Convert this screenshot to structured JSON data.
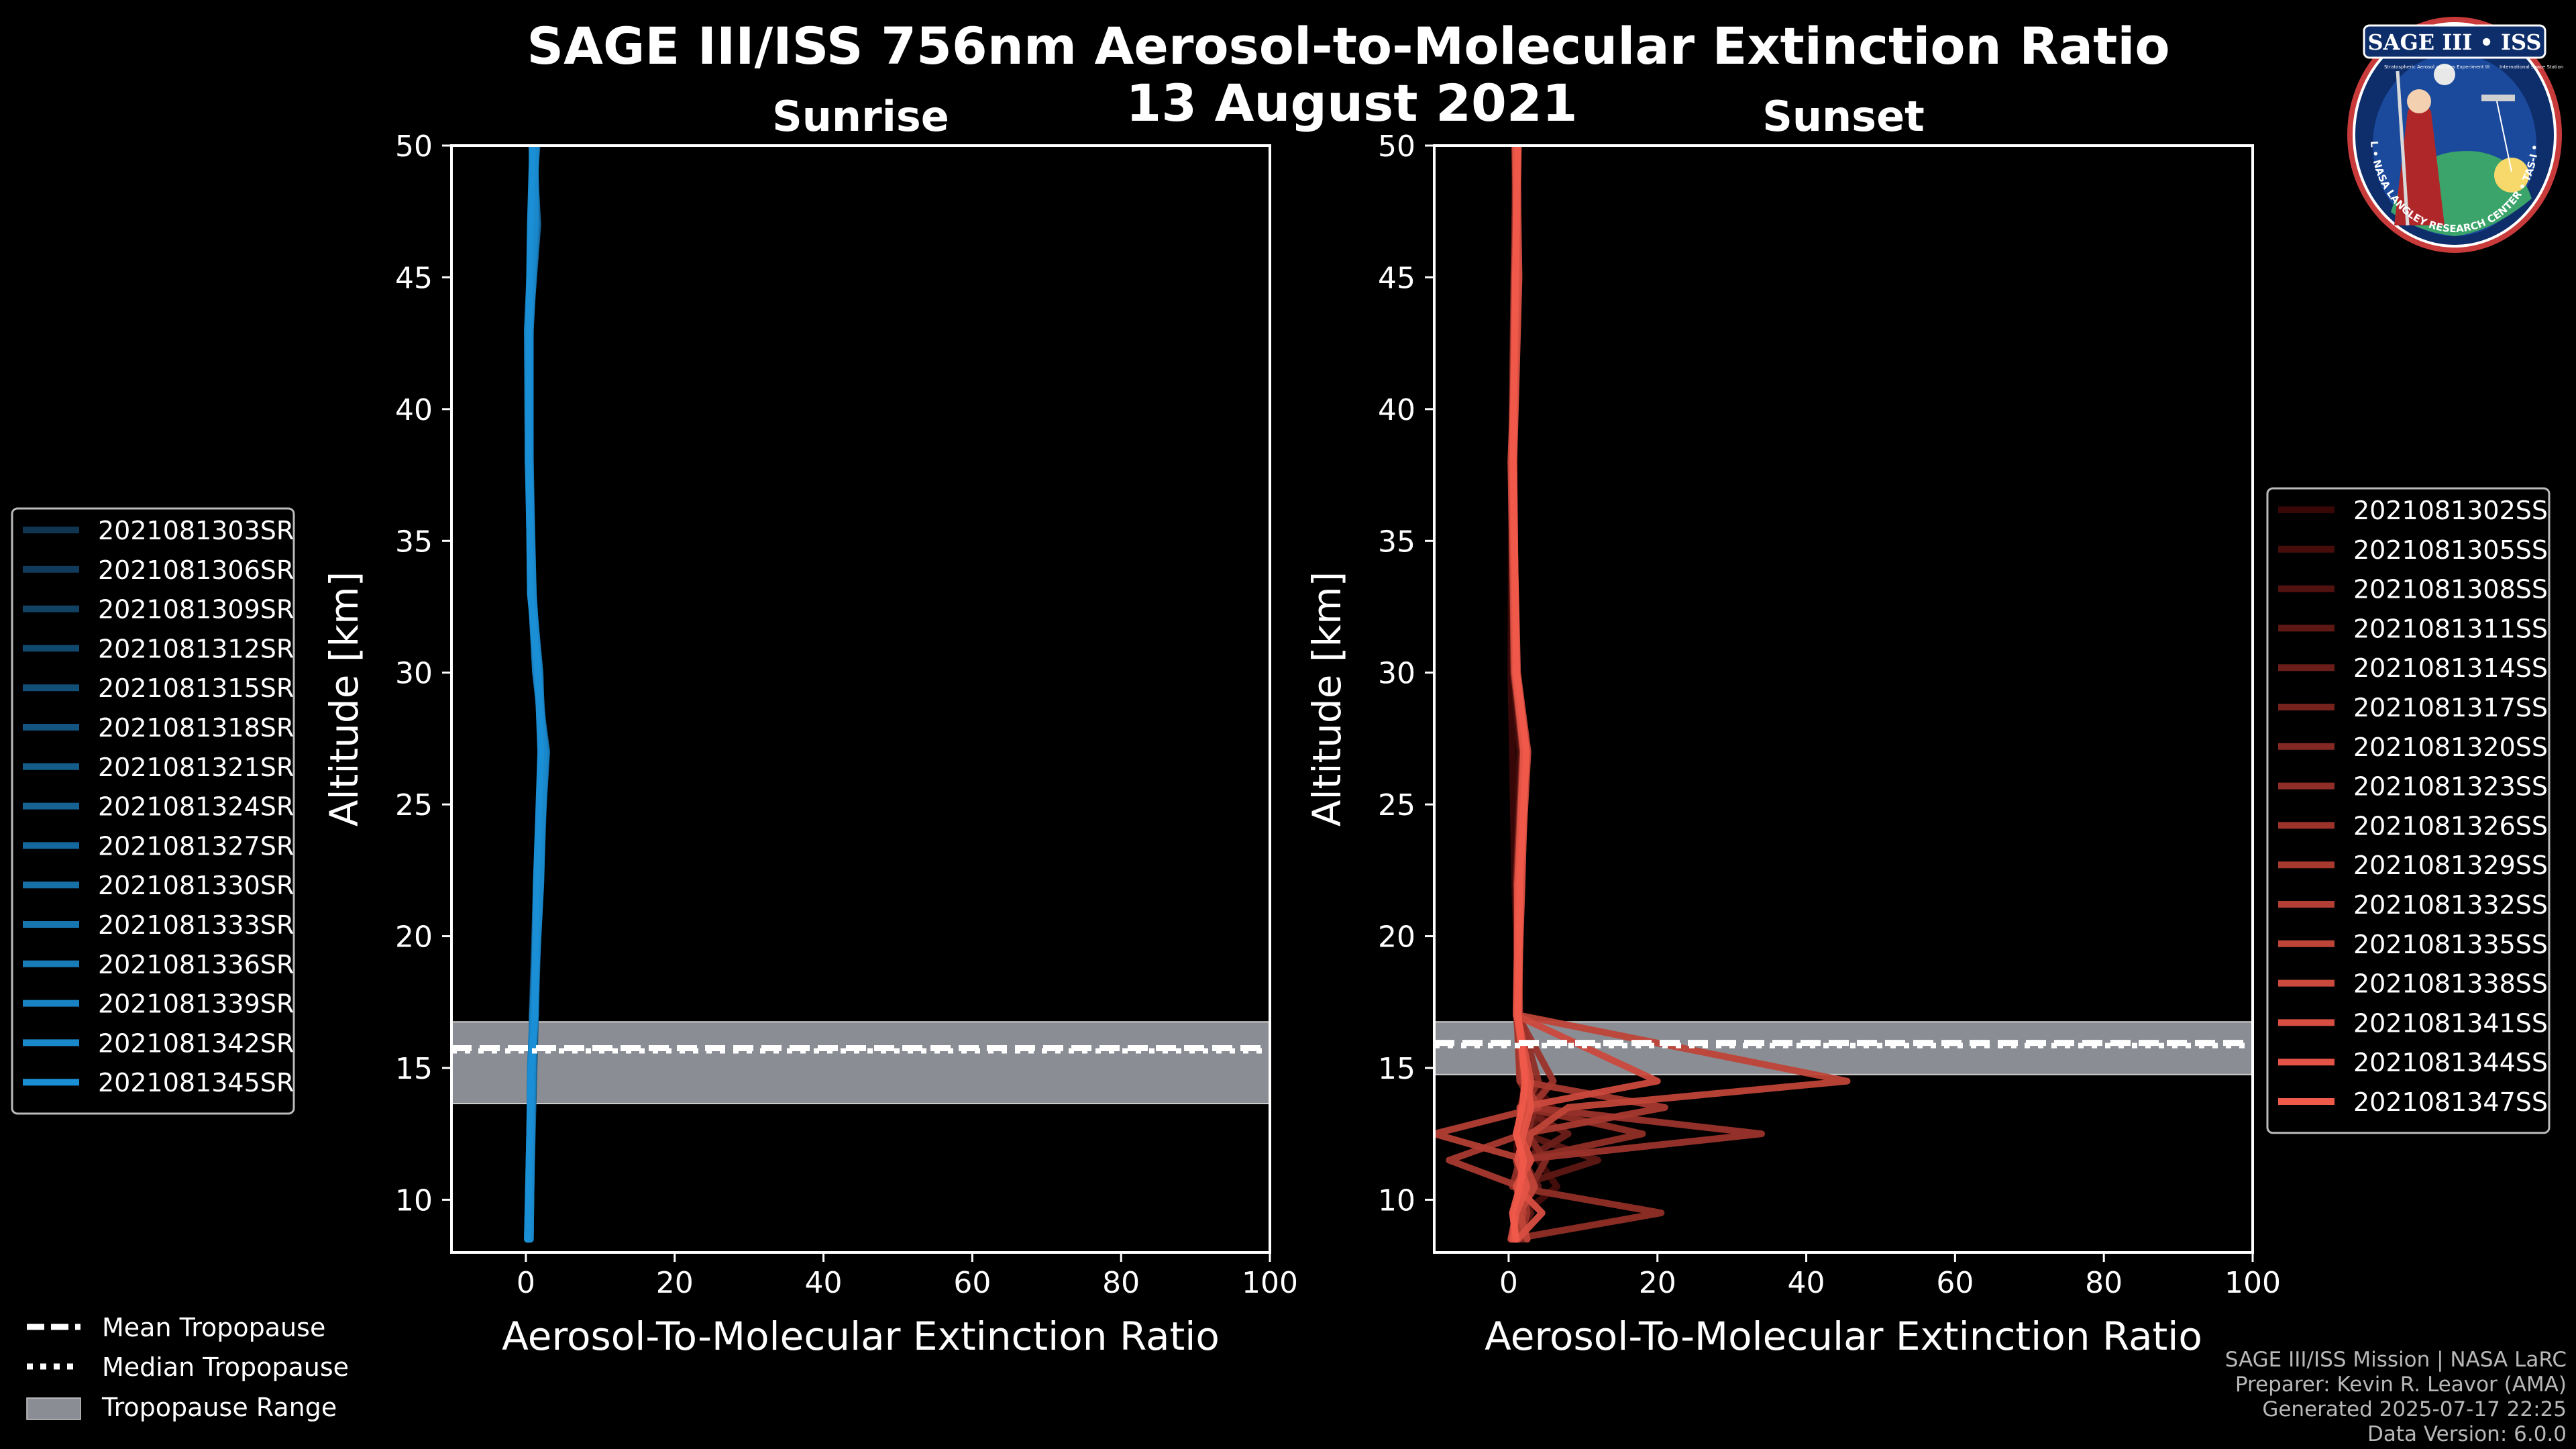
{
  "header": {
    "title": "SAGE III/ISS 756nm Aerosol-to-Molecular Extinction Ratio",
    "date": "13 August 2021"
  },
  "badge": {
    "name": "SAGE III • ISS",
    "ring_text": "BALL • NASA LANGLEY RESEARCH CENTER • TAS-I • ESA",
    "sub_left": "Stratospheric Aerosol and Gas Experiment III",
    "sub_right": "International Space Station"
  },
  "tropopause_legend": [
    {
      "label": "Mean Tropopause",
      "style": "dashed"
    },
    {
      "label": "Median Tropopause",
      "style": "dotted"
    },
    {
      "label": "Tropopause Range",
      "style": "patch"
    }
  ],
  "footer": [
    "SAGE III/ISS Mission | NASA LaRC",
    "Preparer: Kevin R. Leavor (AMA)",
    "Generated 2025-07-17 22:25",
    "Data Version: 6.0.0"
  ],
  "colors": {
    "background": "#000000",
    "sunrise_dark": "#0f3550",
    "sunrise": "#1a8fd6",
    "sunset_dark": "#3a0707",
    "sunset": "#f05a4a",
    "tropo_band": "#8a8d93"
  },
  "chart_data": [
    {
      "type": "line",
      "title": "Sunrise",
      "xlabel": "Aerosol-To-Molecular Extinction Ratio",
      "ylabel": "Altitude [km]",
      "xlim": [
        -10,
        100
      ],
      "ylim": [
        8,
        50
      ],
      "xticks": [
        0,
        20,
        40,
        60,
        80,
        100
      ],
      "yticks": [
        10,
        15,
        20,
        25,
        30,
        35,
        40,
        45,
        50
      ],
      "tropopause": {
        "mean": 15.75,
        "median": 15.65,
        "range": [
          13.65,
          16.75
        ]
      },
      "legend_location": "left",
      "series": [
        {
          "name": "2021081303SR",
          "x": [
            0.5,
            1.0,
            0.8,
            1.5,
            2.0,
            1.6,
            0.9,
            0.4,
            0.3,
            0.7,
            0.9
          ],
          "y": [
            8.5,
            15,
            17,
            22,
            27,
            30,
            33,
            38,
            43,
            47,
            50
          ]
        },
        {
          "name": "2021081306SR",
          "x": [
            0.3,
            0.8,
            1.0,
            1.7,
            2.3,
            1.4,
            0.7,
            0.5,
            0.6,
            1.2,
            1.0
          ],
          "y": [
            8.5,
            15,
            17,
            22,
            27,
            30,
            33,
            38,
            43,
            47,
            50
          ]
        },
        {
          "name": "2021081309SR",
          "x": [
            0.4,
            0.6,
            1.2,
            1.9,
            2.5,
            1.8,
            0.8,
            0.3,
            0.2,
            0.9,
            1.3
          ],
          "y": [
            8.5,
            15,
            17,
            22,
            27,
            30,
            33,
            38,
            43,
            47,
            50
          ]
        },
        {
          "name": "2021081312SR",
          "x": [
            0.6,
            0.9,
            1.1,
            1.5,
            2.7,
            1.5,
            1.0,
            0.6,
            0.5,
            1.5,
            0.8
          ],
          "y": [
            8.5,
            15,
            17,
            22,
            27,
            30,
            33,
            38,
            43,
            47,
            50
          ]
        },
        {
          "name": "2021081315SR",
          "x": [
            0.2,
            0.7,
            0.9,
            1.6,
            2.2,
            1.9,
            0.6,
            0.4,
            0.4,
            0.6,
            1.1
          ],
          "y": [
            8.5,
            15,
            17,
            22,
            27,
            30,
            33,
            38,
            43,
            47,
            50
          ]
        },
        {
          "name": "2021081318SR",
          "x": [
            0.5,
            1.1,
            1.3,
            1.8,
            2.4,
            1.3,
            0.8,
            0.5,
            0.3,
            1.0,
            1.4
          ],
          "y": [
            8.5,
            15,
            17,
            22,
            27,
            30,
            33,
            38,
            43,
            47,
            50
          ]
        },
        {
          "name": "2021081321SR",
          "x": [
            0.3,
            0.8,
            1.0,
            2.0,
            2.6,
            1.7,
            0.9,
            0.4,
            0.6,
            1.3,
            0.9
          ],
          "y": [
            8.5,
            15,
            17,
            22,
            27,
            30,
            33,
            38,
            43,
            47,
            50
          ]
        },
        {
          "name": "2021081324SR",
          "x": [
            0.4,
            0.6,
            0.9,
            1.4,
            2.1,
            1.6,
            0.7,
            0.6,
            0.2,
            0.8,
            1.2
          ],
          "y": [
            8.5,
            15,
            17,
            22,
            27,
            30,
            33,
            38,
            43,
            47,
            50
          ]
        },
        {
          "name": "2021081327SR",
          "x": [
            0.6,
            0.9,
            1.2,
            1.7,
            2.8,
            1.4,
            1.0,
            0.3,
            0.5,
            1.6,
            1.0
          ],
          "y": [
            8.5,
            15,
            17,
            22,
            27,
            30,
            33,
            38,
            43,
            47,
            50
          ]
        },
        {
          "name": "2021081330SR",
          "x": [
            0.2,
            0.7,
            1.1,
            1.9,
            2.3,
            1.8,
            0.6,
            0.5,
            0.4,
            0.7,
            1.5
          ],
          "y": [
            8.5,
            15,
            17,
            22,
            27,
            30,
            33,
            38,
            43,
            47,
            50
          ]
        },
        {
          "name": "2021081333SR",
          "x": [
            0.5,
            1.0,
            1.0,
            1.5,
            2.5,
            1.5,
            0.8,
            0.4,
            0.3,
            1.1,
            0.8
          ],
          "y": [
            8.5,
            15,
            17,
            22,
            27,
            30,
            33,
            38,
            43,
            47,
            50
          ]
        },
        {
          "name": "2021081336SR",
          "x": [
            0.3,
            0.8,
            1.3,
            1.6,
            2.2,
            1.9,
            0.9,
            0.6,
            0.6,
            1.4,
            1.2
          ],
          "y": [
            8.5,
            15,
            17,
            22,
            27,
            30,
            33,
            38,
            43,
            47,
            50
          ]
        },
        {
          "name": "2021081339SR",
          "x": [
            0.4,
            0.6,
            0.9,
            1.8,
            2.7,
            1.3,
            0.7,
            0.3,
            0.2,
            0.9,
            1.0
          ],
          "y": [
            8.5,
            15,
            17,
            22,
            27,
            30,
            33,
            38,
            43,
            47,
            50
          ]
        },
        {
          "name": "2021081342SR",
          "x": [
            0.6,
            0.9,
            1.1,
            2.0,
            2.4,
            1.7,
            1.0,
            0.5,
            0.5,
            1.2,
            1.3
          ],
          "y": [
            8.5,
            15,
            17,
            22,
            27,
            30,
            33,
            38,
            43,
            47,
            50
          ]
        },
        {
          "name": "2021081345SR",
          "x": [
            0.2,
            0.7,
            1.2,
            1.4,
            2.0,
            1.6,
            0.6,
            0.4,
            0.4,
            0.6,
            0.9
          ],
          "y": [
            8.5,
            15,
            17,
            22,
            27,
            30,
            33,
            38,
            43,
            47,
            50
          ]
        }
      ]
    },
    {
      "type": "line",
      "title": "Sunset",
      "xlabel": "Aerosol-To-Molecular Extinction Ratio",
      "ylabel": "Altitude [km]",
      "xlim": [
        -10,
        100
      ],
      "ylim": [
        8,
        50
      ],
      "xticks": [
        0,
        20,
        40,
        60,
        80,
        100
      ],
      "yticks": [
        10,
        15,
        20,
        25,
        30,
        35,
        40,
        45,
        50
      ],
      "tropopause": {
        "mean": 15.95,
        "median": 15.85,
        "range": [
          14.75,
          16.75
        ]
      },
      "legend_location": "right",
      "series": [
        {
          "name": "2021081302SS",
          "x": [
            1.5,
            0.8,
            2.5,
            1.0,
            1.2,
            1.6,
            2.2,
            1.4,
            0.8,
            0.5,
            0.3,
            0.4,
            0.8,
            1.0
          ],
          "y": [
            8.5,
            9.5,
            10.5,
            11.5,
            12.5,
            13.5,
            14.5,
            17,
            22,
            27,
            30,
            38,
            45,
            50
          ]
        },
        {
          "name": "2021081305SS",
          "x": [
            0.5,
            2.0,
            6.5,
            4.0,
            3.0,
            6.0,
            3.0,
            1.5,
            1.0,
            1.5,
            0.6,
            0.5,
            0.9,
            1.1
          ],
          "y": [
            8.5,
            9.5,
            10.5,
            11.5,
            12.5,
            13.5,
            14.5,
            17,
            22,
            27,
            30,
            38,
            45,
            50
          ]
        },
        {
          "name": "2021081308SS",
          "x": [
            1.0,
            1.5,
            2.0,
            1.2,
            3.5,
            2.0,
            2.5,
            1.2,
            1.6,
            2.0,
            0.8,
            0.4,
            1.0,
            0.8
          ],
          "y": [
            8.5,
            9.5,
            10.5,
            11.5,
            12.5,
            13.5,
            14.5,
            17,
            22,
            27,
            30,
            38,
            45,
            50
          ]
        },
        {
          "name": "2021081311SS",
          "x": [
            0.8,
            3.0,
            1.0,
            12.0,
            2.0,
            5.0,
            1.8,
            1.1,
            1.2,
            2.3,
            1.0,
            0.6,
            1.2,
            1.3
          ],
          "y": [
            8.5,
            9.5,
            10.5,
            11.5,
            12.5,
            13.5,
            14.5,
            17,
            22,
            27,
            30,
            38,
            45,
            50
          ]
        },
        {
          "name": "2021081314SS",
          "x": [
            1.2,
            0.5,
            4.0,
            2.0,
            8.0,
            1.5,
            3.0,
            1.4,
            1.0,
            1.8,
            0.7,
            0.5,
            0.8,
            0.9
          ],
          "y": [
            8.5,
            9.5,
            10.5,
            11.5,
            12.5,
            13.5,
            14.5,
            17,
            22,
            27,
            30,
            38,
            45,
            50
          ]
        },
        {
          "name": "2021081317SS",
          "x": [
            0.6,
            1.8,
            1.5,
            3.0,
            1.0,
            2.5,
            2.0,
            1.0,
            1.3,
            2.1,
            0.9,
            0.7,
            1.1,
            1.2
          ],
          "y": [
            8.5,
            9.5,
            10.5,
            11.5,
            12.5,
            13.5,
            14.5,
            17,
            22,
            27,
            30,
            38,
            45,
            50
          ]
        },
        {
          "name": "2021081320SS",
          "x": [
            2.0,
            1.0,
            3.0,
            5.0,
            2.5,
            3.5,
            1.5,
            1.3,
            1.7,
            2.5,
            1.1,
            0.4,
            0.7,
            1.0
          ],
          "y": [
            8.5,
            9.5,
            10.5,
            11.5,
            12.5,
            13.5,
            14.5,
            17,
            22,
            27,
            30,
            38,
            45,
            50
          ]
        },
        {
          "name": "2021081323SS",
          "x": [
            0.4,
            20.5,
            0.5,
            1.5,
            18.0,
            2.0,
            4.0,
            1.5,
            1.1,
            1.9,
            0.8,
            0.6,
            1.3,
            0.8
          ],
          "y": [
            8.5,
            9.5,
            10.5,
            11.5,
            12.5,
            13.5,
            14.5,
            17,
            22,
            27,
            30,
            38,
            45,
            50
          ]
        },
        {
          "name": "2021081326SS",
          "x": [
            1.5,
            2.5,
            2.0,
            1.0,
            34.0,
            3.0,
            6.0,
            1.2,
            1.5,
            2.4,
            1.0,
            0.5,
            0.9,
            1.1
          ],
          "y": [
            8.5,
            9.5,
            10.5,
            11.5,
            12.5,
            13.5,
            14.5,
            17,
            22,
            27,
            30,
            38,
            45,
            50
          ]
        },
        {
          "name": "2021081329SS",
          "x": [
            0.8,
            1.0,
            1.5,
            -8.0,
            2.0,
            21.0,
            1.5,
            1.1,
            1.2,
            2.0,
            0.7,
            0.4,
            1.0,
            0.9
          ],
          "y": [
            8.5,
            9.5,
            10.5,
            11.5,
            12.5,
            13.5,
            14.5,
            17,
            22,
            27,
            30,
            38,
            45,
            50
          ]
        },
        {
          "name": "2021081332SS",
          "x": [
            1.0,
            2.0,
            1.0,
            2.5,
            -10.0,
            4.0,
            2.0,
            1.3,
            1.4,
            2.2,
            0.9,
            0.6,
            1.1,
            1.0
          ],
          "y": [
            8.5,
            9.5,
            10.5,
            11.5,
            12.5,
            13.5,
            14.5,
            17,
            22,
            27,
            30,
            38,
            45,
            50
          ]
        },
        {
          "name": "2021081335SS",
          "x": [
            2.5,
            1.5,
            3.5,
            2.0,
            3.0,
            8.0,
            45.5,
            1.4,
            1.6,
            2.6,
            1.2,
            0.5,
            0.8,
            1.2
          ],
          "y": [
            8.5,
            9.5,
            10.5,
            11.5,
            12.5,
            13.5,
            14.5,
            17,
            22,
            27,
            30,
            38,
            45,
            50
          ]
        },
        {
          "name": "2021081338SS",
          "x": [
            0.3,
            1.0,
            2.0,
            1.5,
            2.0,
            1.5,
            20.0,
            1.0,
            1.3,
            2.1,
            0.8,
            0.3,
            1.2,
            0.9
          ],
          "y": [
            8.5,
            9.5,
            10.5,
            11.5,
            12.5,
            13.5,
            14.5,
            17,
            22,
            27,
            30,
            38,
            45,
            50
          ]
        },
        {
          "name": "2021081341SS",
          "x": [
            1.2,
            4.5,
            1.0,
            3.0,
            1.5,
            2.5,
            3.0,
            1.2,
            1.8,
            2.3,
            1.0,
            0.7,
            1.4,
            1.1
          ],
          "y": [
            8.5,
            9.5,
            10.5,
            11.5,
            12.5,
            13.5,
            14.5,
            17,
            22,
            27,
            30,
            38,
            45,
            50
          ]
        },
        {
          "name": "2021081344SS",
          "x": [
            0.6,
            1.0,
            2.5,
            1.2,
            2.0,
            3.0,
            2.5,
            1.1,
            1.2,
            2.0,
            0.9,
            0.5,
            1.0,
            1.0
          ],
          "y": [
            8.5,
            9.5,
            10.5,
            11.5,
            12.5,
            13.5,
            14.5,
            17,
            22,
            27,
            30,
            38,
            45,
            50
          ]
        },
        {
          "name": "2021081347SS",
          "x": [
            1.0,
            0.5,
            1.5,
            2.0,
            1.0,
            1.8,
            2.2,
            1.3,
            1.5,
            2.4,
            1.1,
            0.6,
            0.9,
            1.3
          ],
          "y": [
            8.5,
            9.5,
            10.5,
            11.5,
            12.5,
            13.5,
            14.5,
            17,
            22,
            27,
            30,
            38,
            45,
            50
          ]
        }
      ]
    }
  ]
}
